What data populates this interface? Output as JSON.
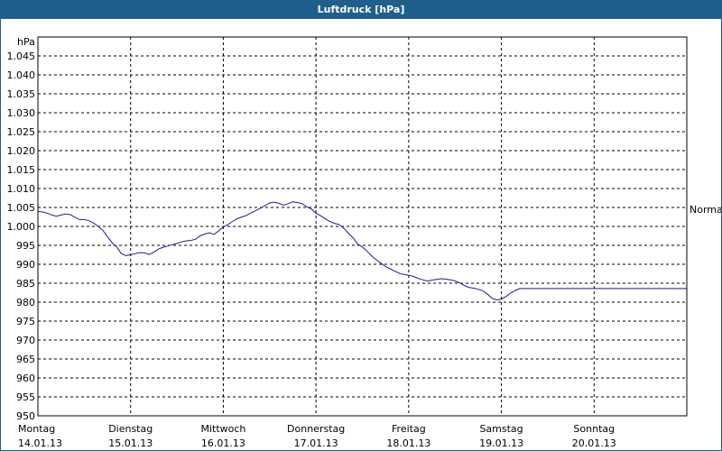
{
  "window": {
    "title": "Luftdruck [hPa]"
  },
  "chart_data": {
    "type": "line",
    "title": "Luftdruck [hPa]",
    "ylabel": "hPa",
    "ylim": [
      950,
      1050
    ],
    "yticks": [
      "1.045",
      "1.040",
      "1.035",
      "1.030",
      "1.025",
      "1.020",
      "1.015",
      "1.010",
      "1.005",
      "1.000",
      "995",
      "990",
      "985",
      "980",
      "975",
      "970",
      "965",
      "960",
      "955",
      "950"
    ],
    "ytick_values": [
      1045,
      1040,
      1035,
      1030,
      1025,
      1020,
      1015,
      1010,
      1005,
      1000,
      995,
      990,
      985,
      980,
      975,
      970,
      965,
      960,
      955,
      950
    ],
    "xlim": [
      0,
      7
    ],
    "xticks": [
      {
        "day": "Montag",
        "date": "14.01.13"
      },
      {
        "day": "Dienstag",
        "date": "15.01.13"
      },
      {
        "day": "Mittwoch",
        "date": "16.01.13"
      },
      {
        "day": "Donnerstag",
        "date": "17.01.13"
      },
      {
        "day": "Freitag",
        "date": "18.01.13"
      },
      {
        "day": "Samstag",
        "date": "19.01.13"
      },
      {
        "day": "Sonntag",
        "date": "20.01.13"
      }
    ],
    "reference_line": {
      "label": "Normal",
      "value": 1004.5
    },
    "grid": true,
    "series": [
      {
        "color": "#1a1aa0",
        "x": [
          0.0,
          0.05,
          0.1,
          0.15,
          0.2,
          0.25,
          0.3,
          0.35,
          0.4,
          0.45,
          0.5,
          0.55,
          0.6,
          0.65,
          0.7,
          0.75,
          0.8,
          0.85,
          0.9,
          0.95,
          1.0,
          1.05,
          1.1,
          1.15,
          1.2,
          1.25,
          1.3,
          1.35,
          1.4,
          1.45,
          1.5,
          1.55,
          1.6,
          1.65,
          1.7,
          1.75,
          1.8,
          1.85,
          1.9,
          1.95,
          2.0,
          2.05,
          2.1,
          2.15,
          2.2,
          2.25,
          2.3,
          2.35,
          2.4,
          2.45,
          2.5,
          2.55,
          2.6,
          2.65,
          2.7,
          2.75,
          2.8,
          2.85,
          2.9,
          2.95,
          3.0,
          3.05,
          3.1,
          3.15,
          3.2,
          3.25,
          3.3,
          3.35,
          3.4,
          3.45,
          3.5,
          3.55,
          3.6,
          3.65,
          3.7,
          3.75,
          3.8,
          3.85,
          3.9,
          3.95,
          4.0,
          4.05,
          4.1,
          4.15,
          4.2,
          4.25,
          4.3,
          4.35,
          4.4,
          4.45,
          4.5,
          4.55,
          4.6,
          4.65,
          4.7,
          4.75,
          4.8,
          4.85,
          4.9,
          4.95,
          5.0,
          5.05,
          5.1,
          5.15,
          5.2,
          5.25,
          5.3,
          5.35,
          5.4,
          5.45,
          5.5,
          5.55,
          5.6,
          5.65,
          5.7,
          5.75,
          5.8,
          5.85,
          5.9,
          5.95,
          6.0,
          6.05,
          6.1,
          6.15,
          6.2,
          6.25,
          6.3,
          6.35,
          6.4,
          6.45,
          6.5,
          6.55,
          6.6,
          6.65,
          6.7,
          6.75,
          6.8,
          6.85,
          6.9,
          6.95,
          7.0
        ],
        "values": [
          1004.0,
          1003.8,
          1003.5,
          1003.0,
          1002.7,
          1003.0,
          1003.3,
          1003.1,
          1002.4,
          1001.8,
          1001.8,
          1001.5,
          1000.9,
          1000.0,
          999.0,
          997.3,
          995.7,
          994.6,
          992.8,
          992.3,
          992.5,
          992.8,
          993.1,
          993.0,
          992.6,
          993.2,
          994.0,
          994.5,
          994.8,
          995.2,
          995.5,
          995.9,
          996.2,
          996.3,
          996.6,
          997.5,
          998.0,
          998.3,
          997.9,
          998.8,
          999.8,
          1000.5,
          1001.3,
          1002.0,
          1002.5,
          1002.9,
          1003.6,
          1004.2,
          1004.8,
          1005.5,
          1006.2,
          1006.4,
          1006.1,
          1005.6,
          1006.0,
          1006.5,
          1006.3,
          1006.0,
          1005.2,
          1004.6,
          1003.5,
          1002.8,
          1002.0,
          1001.3,
          1000.8,
          1000.5,
          999.5,
          998.2,
          997.0,
          995.3,
          994.6,
          993.5,
          992.2,
          991.2,
          990.3,
          989.4,
          988.8,
          988.2,
          987.6,
          987.3,
          987.1,
          986.8,
          986.3,
          985.9,
          985.6,
          985.8,
          986.0,
          986.2,
          986.1,
          985.9,
          985.6,
          985.1,
          984.4,
          983.9,
          983.7,
          983.4,
          983.0,
          982.1,
          981.0,
          980.6,
          980.8,
          981.5,
          982.4,
          983.1,
          983.6,
          983.6,
          983.6,
          983.6,
          983.6,
          983.6,
          983.6,
          983.6,
          983.6,
          983.6,
          983.6,
          983.6,
          983.6,
          983.6,
          983.6,
          983.6,
          983.6,
          983.6,
          983.6,
          983.6,
          983.6,
          983.6,
          983.6,
          983.6,
          983.6,
          983.6,
          983.6,
          983.6,
          983.6,
          983.6,
          983.6,
          983.6,
          983.6,
          983.6,
          983.6,
          983.6,
          983.6
        ]
      }
    ]
  }
}
